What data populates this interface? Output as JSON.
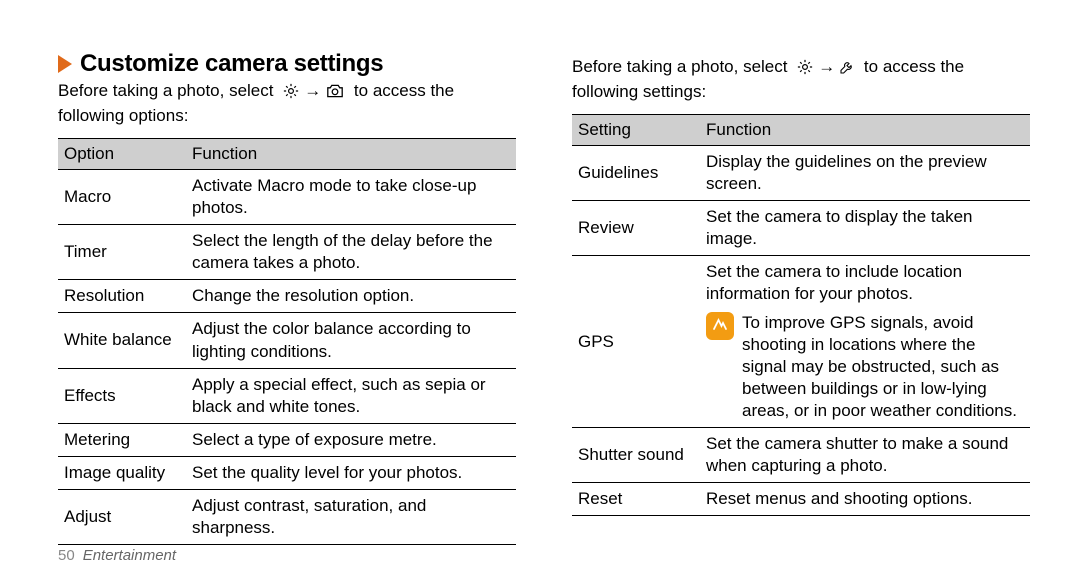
{
  "colors": {
    "chevron": "#e06a1a",
    "table_header_bg": "#cfcfcf",
    "border": "#000000",
    "footer_text": "#666666",
    "note_icon_bg": "#f39c12",
    "note_icon_fg": "#ffffff"
  },
  "heading": "Customize camera settings",
  "intro_left_pre": "Before taking a photo, select ",
  "intro_arrow": "→",
  "intro_left_post_a": " to access the",
  "intro_left_post_b": "following options:",
  "intro_right_pre": "Before taking a photo, select ",
  "intro_right_post_a": " to access the",
  "intro_right_post_b": "following settings:",
  "table_left": {
    "headers": [
      "Option",
      "Function"
    ],
    "rows": [
      [
        "Macro",
        "Activate Macro mode to take close-up photos."
      ],
      [
        "Timer",
        "Select the length of the delay before the camera takes a photo."
      ],
      [
        "Resolution",
        "Change the resolution option."
      ],
      [
        "White balance",
        "Adjust the color balance according to lighting conditions."
      ],
      [
        "Effects",
        "Apply a special effect, such as sepia or black and white tones."
      ],
      [
        "Metering",
        "Select a type of exposure metre."
      ],
      [
        "Image quality",
        "Set the quality level for your photos."
      ],
      [
        "Adjust",
        "Adjust contrast, saturation, and sharpness."
      ]
    ]
  },
  "table_right": {
    "headers": [
      "Setting",
      "Function"
    ],
    "rows_simple_before": [
      [
        "Guidelines",
        "Display the guidelines on the preview screen."
      ],
      [
        "Review",
        "Set the camera to display the taken image."
      ]
    ],
    "gps_row": {
      "label": "GPS",
      "line1": "Set the camera to include location information for your photos.",
      "note": "To improve GPS signals, avoid shooting in locations where the signal may be obstructed, such as between buildings or in low-lying areas, or in poor weather conditions."
    },
    "rows_simple_after": [
      [
        "Shutter sound",
        "Set the camera shutter to make a sound when capturing a photo."
      ],
      [
        "Reset",
        "Reset menus and shooting options."
      ]
    ]
  },
  "footer": {
    "page_number": "50",
    "section": "Entertainment"
  }
}
